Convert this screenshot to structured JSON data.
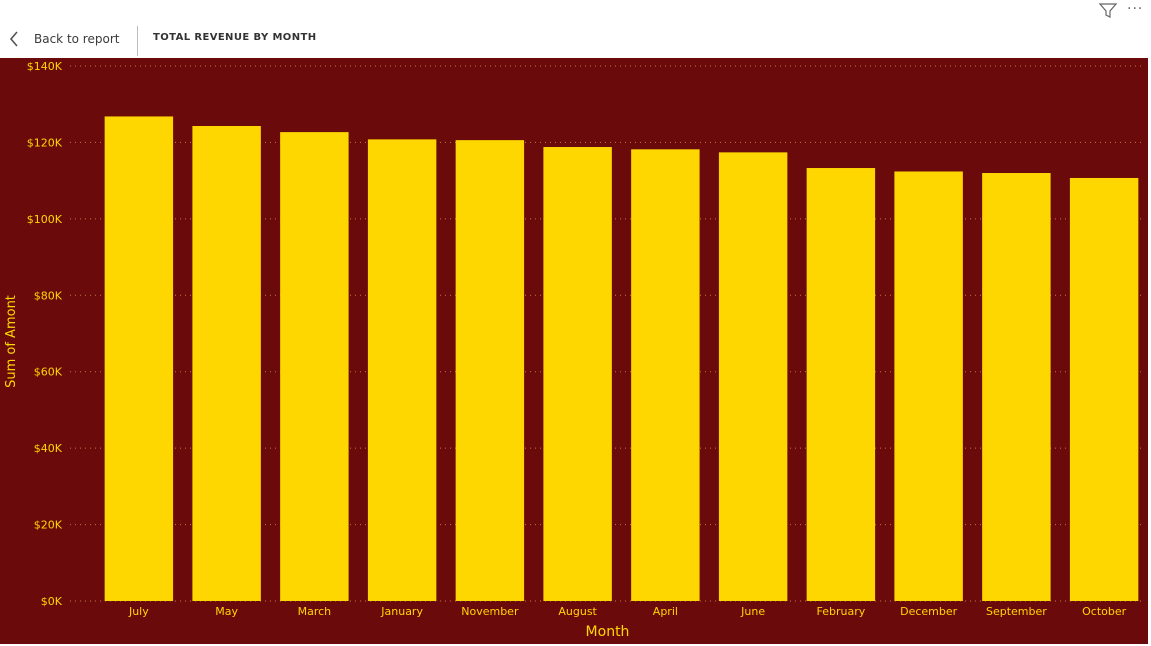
{
  "header": {
    "back_label": "Back to report",
    "title": "TOTAL REVENUE BY MONTH"
  },
  "icons": {
    "back": "chevron-left-icon",
    "filter": "filter-icon",
    "more": "more-options-icon"
  },
  "colors": {
    "background": "#6b0a0a",
    "bar": "#ffd700",
    "text": "#ffd700"
  },
  "chart_data": {
    "type": "bar",
    "title": "",
    "xlabel": "Month",
    "ylabel": "Sum of Amont",
    "categories": [
      "July",
      "May",
      "March",
      "January",
      "November",
      "August",
      "April",
      "June",
      "February",
      "December",
      "September",
      "October"
    ],
    "values": [
      126800,
      124300,
      122700,
      120800,
      120600,
      118800,
      118200,
      117400,
      113300,
      112400,
      112000,
      110700
    ],
    "ylim": [
      0,
      140000
    ],
    "yticks": [
      "$0K",
      "$20K",
      "$40K",
      "$60K",
      "$80K",
      "$100K",
      "$120K",
      "$140K"
    ],
    "grid": true
  }
}
